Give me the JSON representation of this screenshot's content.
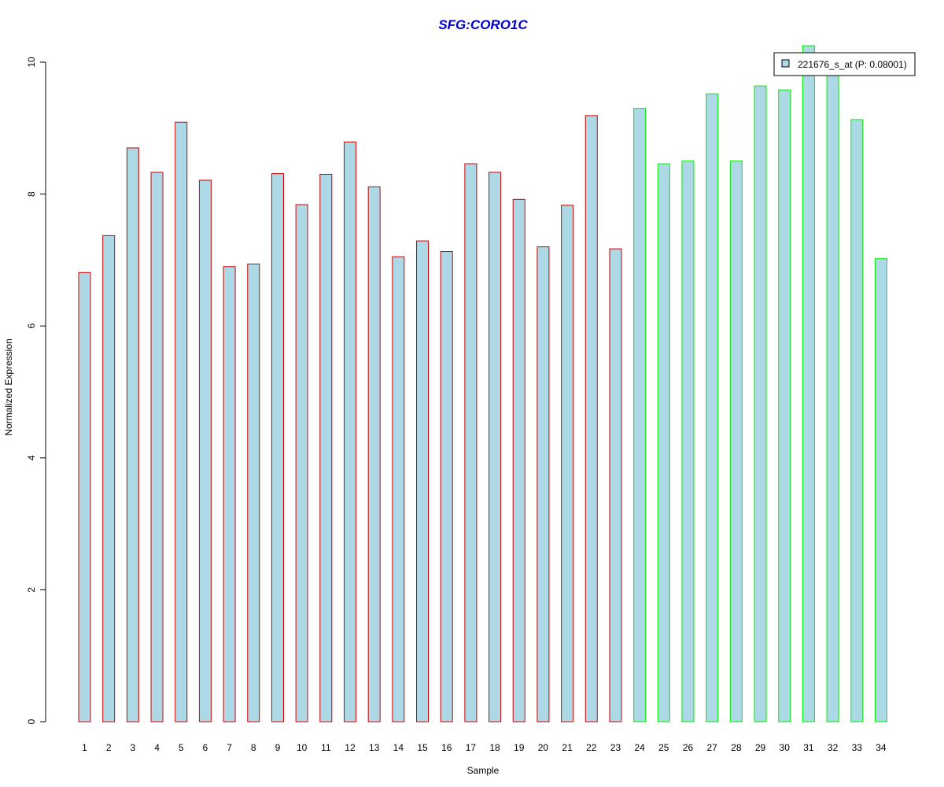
{
  "chart_data": {
    "type": "bar",
    "title": "SFG:CORO1C",
    "xlabel": "Sample",
    "ylabel": "Normalized Expression",
    "ylim": [
      0,
      10
    ],
    "yticks": [
      0,
      2,
      4,
      6,
      8,
      10
    ],
    "grid": false,
    "legend": {
      "placement": "top-right",
      "entries": [
        "221676_s_at (P: 0.08001)"
      ]
    },
    "categories": [
      "1",
      "2",
      "3",
      "4",
      "5",
      "6",
      "7",
      "8",
      "9",
      "10",
      "11",
      "12",
      "13",
      "14",
      "15",
      "16",
      "17",
      "18",
      "19",
      "20",
      "21",
      "22",
      "23",
      "24",
      "25",
      "26",
      "27",
      "28",
      "29",
      "30",
      "31",
      "32",
      "33",
      "34"
    ],
    "series": [
      {
        "name": "221676_s_at (P: 0.08001)",
        "values": [
          6.81,
          7.37,
          8.7,
          8.33,
          9.09,
          8.21,
          6.9,
          6.94,
          8.31,
          7.84,
          8.3,
          8.79,
          8.11,
          7.05,
          7.29,
          7.13,
          8.46,
          8.33,
          7.92,
          7.2,
          7.83,
          9.19,
          7.17,
          9.3,
          8.46,
          8.5,
          9.52,
          8.5,
          9.64,
          9.58,
          10.25,
          9.95,
          9.13,
          7.02
        ],
        "groups": [
          "a",
          "a",
          "a",
          "a",
          "a",
          "a",
          "a",
          "a",
          "a",
          "a",
          "a",
          "a",
          "a",
          "a",
          "a",
          "a",
          "a",
          "a",
          "a",
          "a",
          "a",
          "a",
          "a",
          "b",
          "b",
          "b",
          "b",
          "b",
          "b",
          "b",
          "b",
          "b",
          "b",
          "b"
        ]
      }
    ],
    "colors": {
      "title": "#0000cc",
      "bar_fill": "#add8e6",
      "group_a_border": "#cc0000",
      "group_b_border": "#00ee00",
      "axis": "#000000"
    }
  }
}
